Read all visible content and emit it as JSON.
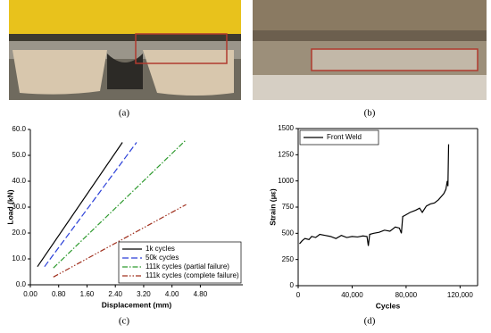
{
  "captions": [
    "(a)",
    "(b)",
    "(c)",
    "(d)"
  ],
  "chart_data": [
    {
      "type": "line",
      "xlabel": "Displacement (mm)",
      "ylabel": "Load (kN)",
      "xlim": [
        0,
        6
      ],
      "ylim": [
        0,
        60
      ],
      "xticks": [
        {
          "value": 0,
          "label": "0.00"
        },
        {
          "value": 0.8,
          "label": "0.80"
        },
        {
          "value": 1.6,
          "label": "1.60"
        },
        {
          "value": 2.4,
          "label": "2.40"
        },
        {
          "value": 3.2,
          "label": "3.20"
        },
        {
          "value": 4,
          "label": "4.00"
        },
        {
          "value": 4.8,
          "label": "4.80"
        }
      ],
      "yticks": [
        {
          "value": 0,
          "label": "0.0"
        },
        {
          "value": 10,
          "label": "10.0"
        },
        {
          "value": 20,
          "label": "20.0"
        },
        {
          "value": 30,
          "label": "30.0"
        },
        {
          "value": 40,
          "label": "40.0"
        },
        {
          "value": 50,
          "label": "50.0"
        },
        {
          "value": 60,
          "label": "60.0"
        }
      ],
      "legend": "lower right",
      "grid": false,
      "box": false,
      "series": [
        {
          "name": "1k cycles",
          "color": "#000000",
          "line_style": "solid",
          "x": [
            0.2,
            2.6
          ],
          "values": [
            7,
            55
          ]
        },
        {
          "name": "50k cycles",
          "color": "#2a3fd8",
          "line_style": "dashed",
          "x": [
            0.4,
            3.0
          ],
          "values": [
            7,
            55
          ]
        },
        {
          "name": "111k cycles (partial failure)",
          "color": "#2e9a2e",
          "line_style": "dashdot",
          "x": [
            0.65,
            4.4
          ],
          "values": [
            6.5,
            56
          ]
        },
        {
          "name": "111k cycles (complete failure)",
          "color": "#a0301e",
          "line_style": "dashdotdot",
          "x": [
            0.65,
            4.4
          ],
          "values": [
            3,
            31
          ]
        }
      ]
    },
    {
      "type": "line",
      "xlabel": "Cycles",
      "ylabel": "Strain (με)",
      "xlim": [
        0,
        133000
      ],
      "ylim": [
        0,
        1500
      ],
      "xticks": [
        0,
        {
          "value": 40000,
          "label": "40,000"
        },
        {
          "value": 80000,
          "label": "80,000"
        },
        {
          "value": 120000,
          "label": "120,000"
        }
      ],
      "yticks": [
        0,
        250,
        500,
        750,
        1000,
        1250,
        1500
      ],
      "legend": "upper left",
      "grid": false,
      "box": true,
      "series": [
        {
          "name": "Front Weld",
          "color": "#000000",
          "line_style": "solid",
          "x": [
            1000,
            3000,
            5000,
            8000,
            10000,
            13000,
            16000,
            20000,
            24000,
            28000,
            32000,
            36000,
            40000,
            44000,
            48000,
            51000,
            52000,
            53000,
            56000,
            60000,
            64000,
            68000,
            72000,
            75000,
            76500,
            77500,
            79000,
            83000,
            87000,
            90000,
            92000,
            95000,
            98000,
            101000,
            104000,
            106000,
            108000,
            109500,
            110500,
            111000,
            111500
          ],
          "values": [
            400,
            430,
            450,
            440,
            470,
            460,
            490,
            480,
            470,
            450,
            480,
            460,
            470,
            465,
            475,
            470,
            380,
            490,
            500,
            510,
            530,
            520,
            560,
            550,
            500,
            660,
            670,
            700,
            720,
            740,
            700,
            760,
            780,
            790,
            820,
            850,
            880,
            920,
            1000,
            950,
            1350
          ]
        }
      ]
    }
  ]
}
